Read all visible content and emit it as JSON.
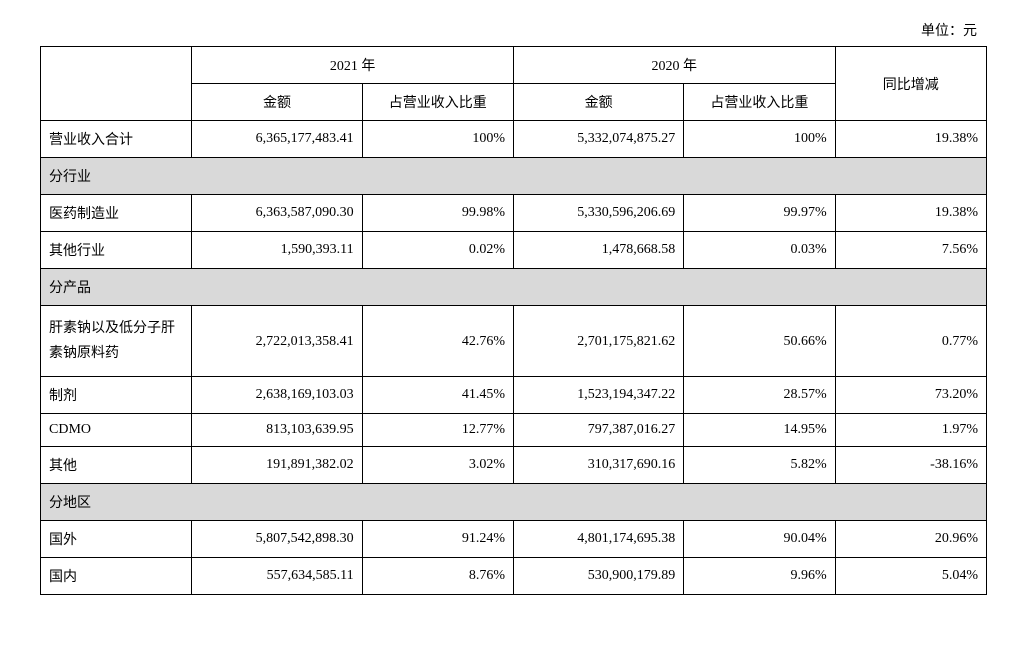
{
  "unit_label": "单位：元",
  "header": {
    "year_2021": "2021 年",
    "year_2020": "2020 年",
    "amount": "金额",
    "pct": "占营业收入比重",
    "yoy": "同比增减"
  },
  "rows": {
    "total": {
      "label": "营业收入合计",
      "amt21": "6,365,177,483.41",
      "pct21": "100%",
      "amt20": "5,332,074,875.27",
      "pct20": "100%",
      "yoy": "19.38%"
    }
  },
  "sections": {
    "by_industry": {
      "title": "分行业",
      "rows": [
        {
          "label": "医药制造业",
          "amt21": "6,363,587,090.30",
          "pct21": "99.98%",
          "amt20": "5,330,596,206.69",
          "pct20": "99.97%",
          "yoy": "19.38%"
        },
        {
          "label": "其他行业",
          "amt21": "1,590,393.11",
          "pct21": "0.02%",
          "amt20": "1,478,668.58",
          "pct20": "0.03%",
          "yoy": "7.56%"
        }
      ]
    },
    "by_product": {
      "title": "分产品",
      "rows": [
        {
          "label": "肝素钠以及低分子肝素钠原料药",
          "amt21": "2,722,013,358.41",
          "pct21": "42.76%",
          "amt20": "2,701,175,821.62",
          "pct20": "50.66%",
          "yoy": "0.77%"
        },
        {
          "label": "制剂",
          "amt21": "2,638,169,103.03",
          "pct21": "41.45%",
          "amt20": "1,523,194,347.22",
          "pct20": "28.57%",
          "yoy": "73.20%"
        },
        {
          "label": "CDMO",
          "amt21": "813,103,639.95",
          "pct21": "12.77%",
          "amt20": "797,387,016.27",
          "pct20": "14.95%",
          "yoy": "1.97%"
        },
        {
          "label": "其他",
          "amt21": "191,891,382.02",
          "pct21": "3.02%",
          "amt20": "310,317,690.16",
          "pct20": "5.82%",
          "yoy": "-38.16%"
        }
      ]
    },
    "by_region": {
      "title": "分地区",
      "rows": [
        {
          "label": "国外",
          "amt21": "5,807,542,898.30",
          "pct21": "91.24%",
          "amt20": "4,801,174,695.38",
          "pct20": "90.04%",
          "yoy": "20.96%"
        },
        {
          "label": "国内",
          "amt21": "557,634,585.11",
          "pct21": "8.76%",
          "amt20": "530,900,179.89",
          "pct20": "9.96%",
          "yoy": "5.04%"
        }
      ]
    }
  },
  "colors": {
    "section_bg": "#d9d9d9",
    "border": "#000000",
    "text": "#000000",
    "bg": "#ffffff"
  }
}
